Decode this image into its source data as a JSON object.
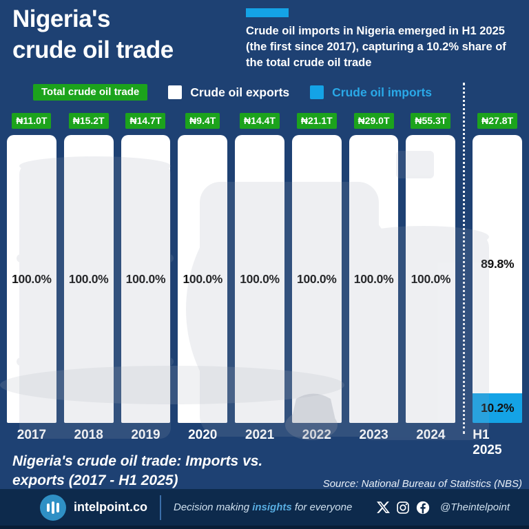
{
  "colors": {
    "background": "#1e4173",
    "footer_background": "#0d2a4c",
    "green": "#1ca31c",
    "cyan": "#14a3e6",
    "cyan_text": "#2aa9e8",
    "bar_white": "#ffffff"
  },
  "header": {
    "title_line1": "Nigeria's",
    "title_line2": "crude oil trade",
    "callout": "Crude oil imports in Nigeria emerged in H1 2025 (the first since 2017), capturing a 10.2% share of the total crude oil trade"
  },
  "legend": {
    "total_label": "Total crude oil trade",
    "exports_label": "Crude oil exports",
    "imports_label": "Crude oil imports"
  },
  "chart_data": {
    "type": "bar",
    "stacked": true,
    "unit": "percent",
    "title": "Nigeria's crude oil trade: Imports vs. exports (2017 - H1 2025)",
    "categories": [
      "2017",
      "2018",
      "2019",
      "2020",
      "2021",
      "2022",
      "2023",
      "2024",
      "H1 2025"
    ],
    "totals": [
      "₦11.0T",
      "₦15.2T",
      "₦14.7T",
      "₦9.4T",
      "₦14.4T",
      "₦21.1T",
      "₦29.0T",
      "₦55.3T",
      "₦27.8T"
    ],
    "series": [
      {
        "name": "Crude oil exports",
        "color": "#ffffff",
        "values": [
          100.0,
          100.0,
          100.0,
          100.0,
          100.0,
          100.0,
          100.0,
          100.0,
          89.8
        ]
      },
      {
        "name": "Crude oil imports",
        "color": "#14a3e6",
        "values": [
          0,
          0,
          0,
          0,
          0,
          0,
          0,
          0,
          10.2
        ]
      }
    ],
    "ylim": [
      0,
      100
    ],
    "grid": false,
    "legend_position": "top",
    "divider_before_category": "H1 2025"
  },
  "caption": {
    "line1": "Nigeria's crude oil trade: Imports vs.",
    "line2": "exports (2017 - H1 2025)"
  },
  "source": "Source: National Bureau of Statistics (NBS)",
  "footer": {
    "brand": "intelpoint.co",
    "tagline_part1": "Decision making ",
    "tagline_emphasis": "insights",
    "tagline_part2": " for everyone",
    "handle": "@Theintelpoint",
    "icons": [
      "x-icon",
      "instagram-icon",
      "facebook-icon",
      "bar-chart-logo-icon"
    ]
  }
}
